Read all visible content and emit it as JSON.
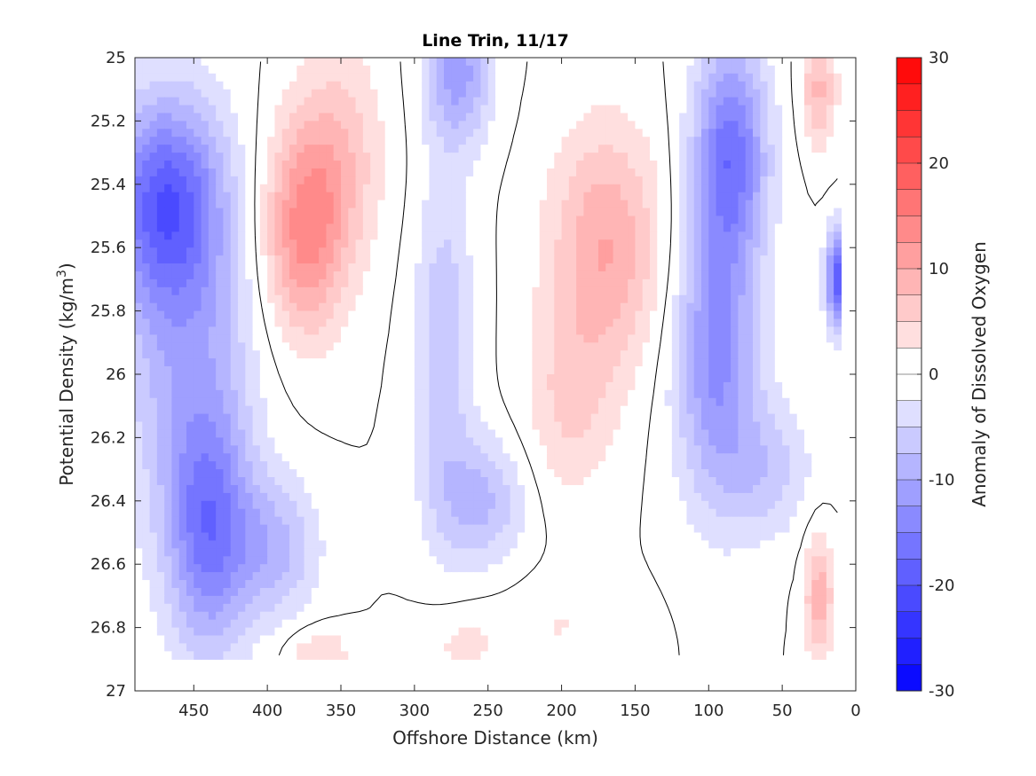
{
  "chart_data": {
    "type": "heatmap",
    "title": "Line Trin, 11/17",
    "xlabel": "Offshore Distance (km)",
    "ylabel": "Potential Density (kg/m³)",
    "ylabel_main": "Potential Density (kg/m",
    "ylabel_sup": "3",
    "ylabel_end": ")",
    "colorbar_label": "Anomaly of Dissolved Oxygen",
    "xlim": [
      490,
      0
    ],
    "ylim": [
      25,
      27
    ],
    "x_reversed": true,
    "y_reversed": true,
    "x_ticks": [
      450,
      400,
      350,
      300,
      250,
      200,
      150,
      100,
      50,
      0
    ],
    "y_ticks": [
      25,
      25.2,
      25.4,
      25.6,
      25.8,
      26,
      26.2,
      26.4,
      26.6,
      26.8,
      27
    ],
    "y_tick_labels": [
      "25",
      "25.2",
      "25.4",
      "25.6",
      "25.8",
      "26",
      "26.2",
      "26.4",
      "26.6",
      "26.8",
      "27"
    ],
    "colorbar_range": [
      -30,
      30
    ],
    "colorbar_step": 2.5,
    "colorbar_ticks": [
      30,
      20,
      10,
      0,
      -10,
      -20,
      -30
    ],
    "data_x_range": [
      490,
      10
    ],
    "data_y_range": [
      25,
      26.9
    ],
    "zero_contour": true,
    "grid": false,
    "colormap": "blue-white-red",
    "colors": {
      "negative": "#0000ff",
      "zero": "#ffffff",
      "positive": "#ff0000"
    },
    "features": [
      {
        "x": 470,
        "y": 25.45,
        "sx": 38,
        "sy": 0.32,
        "value": -16
      },
      {
        "x": 440,
        "y": 26.5,
        "sx": 28,
        "sy": 0.38,
        "value": -14
      },
      {
        "x": 455,
        "y": 25.9,
        "sx": 45,
        "sy": 0.6,
        "value": -9
      },
      {
        "x": 375,
        "y": 25.55,
        "sx": 28,
        "sy": 0.33,
        "value": 13
      },
      {
        "x": 350,
        "y": 25.3,
        "sx": 30,
        "sy": 0.35,
        "value": 6
      },
      {
        "x": 395,
        "y": 26.55,
        "sx": 30,
        "sy": 0.22,
        "value": -8
      },
      {
        "x": 270,
        "y": 25.05,
        "sx": 22,
        "sy": 0.22,
        "value": -11
      },
      {
        "x": 280,
        "y": 25.9,
        "sx": 20,
        "sy": 0.55,
        "value": -7
      },
      {
        "x": 255,
        "y": 26.4,
        "sx": 30,
        "sy": 0.2,
        "value": -8
      },
      {
        "x": 170,
        "y": 25.6,
        "sx": 38,
        "sy": 0.38,
        "value": 10
      },
      {
        "x": 195,
        "y": 26.1,
        "sx": 30,
        "sy": 0.3,
        "value": 5
      },
      {
        "x": 200,
        "y": 26.8,
        "sx": 45,
        "sy": 0.15,
        "value": 2.5
      },
      {
        "x": 270,
        "y": 26.85,
        "sx": 30,
        "sy": 0.12,
        "value": 3
      },
      {
        "x": 365,
        "y": 26.88,
        "sx": 22,
        "sy": 0.08,
        "value": 5
      },
      {
        "x": 85,
        "y": 25.3,
        "sx": 25,
        "sy": 0.35,
        "value": -16
      },
      {
        "x": 95,
        "y": 25.95,
        "sx": 28,
        "sy": 0.45,
        "value": -13
      },
      {
        "x": 60,
        "y": 26.3,
        "sx": 30,
        "sy": 0.22,
        "value": -6
      },
      {
        "x": 25,
        "y": 25.1,
        "sx": 12,
        "sy": 0.18,
        "value": 8
      },
      {
        "x": 25,
        "y": 26.7,
        "sx": 10,
        "sy": 0.2,
        "value": 9
      },
      {
        "x": 12,
        "y": 25.7,
        "sx": 8,
        "sy": 0.15,
        "value": -20
      }
    ]
  }
}
